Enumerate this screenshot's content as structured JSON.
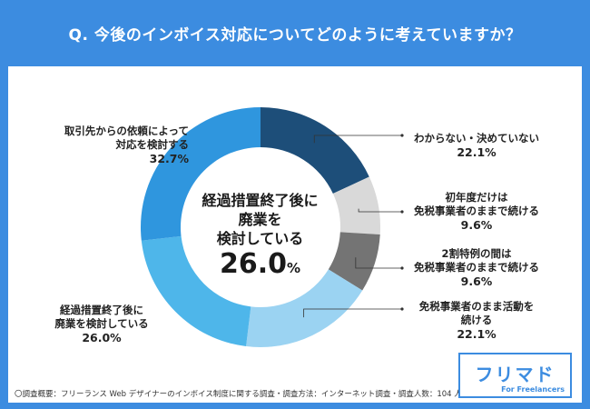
{
  "header": {
    "title": "Q. 今後のインボイス対応についてどのように考えていますか？"
  },
  "chart_data": {
    "type": "pie",
    "categories": [
      "わからない・決めていない",
      "初年度だけは免税事業者のままで続ける",
      "2割特例の間は免税事業者のままで続ける",
      "免税事業者のまま活動を続ける",
      "経過措置終了後に廃業を検討している",
      "取引先からの依頼によって対応を検討する"
    ],
    "values": [
      22.1,
      9.6,
      9.6,
      22.1,
      26.0,
      32.7
    ],
    "colors": [
      "#1d4e79",
      "#d9d9d9",
      "#747474",
      "#9bd3f2",
      "#4eb6ea",
      "#2f96de"
    ],
    "title": "Q. 今後のインボイス対応についてどのように考えていますか？"
  },
  "center": {
    "line1": "経過措置終了後に",
    "line2": "廃業を",
    "line3": "検討している",
    "value": "26.0",
    "unit": "%"
  },
  "labels": {
    "top_left": {
      "line1": "取引先からの依頼によって",
      "line2": "対応を検討する",
      "value": "32.7%"
    },
    "bottom_left": {
      "line1": "経過措置終了後に",
      "line2": "廃業を検討している",
      "value": "26.0%"
    },
    "right_1": {
      "line1": "わからない・決めていない",
      "value": "22.1%"
    },
    "right_2": {
      "line1": "初年度だけは",
      "line2": "免税事業者のままで続ける",
      "value": "9.6%"
    },
    "right_3": {
      "line1": "2割特例の間は",
      "line2": "免税事業者のままで続ける",
      "value": "9.6%"
    },
    "right_4": {
      "line1": "免税事業者のまま活動を",
      "line2": "続ける",
      "value": "22.1%"
    }
  },
  "footnote": "〇調査概要：フリーランス Web デザイナーのインボイス制度に関する調査・調査方法：インターネット調査・調査人数：104 人",
  "logo": {
    "name": "フリマド",
    "sub": "For Freelancers"
  },
  "colors": {
    "brand": "#3c8ce0",
    "text": "#222222"
  }
}
